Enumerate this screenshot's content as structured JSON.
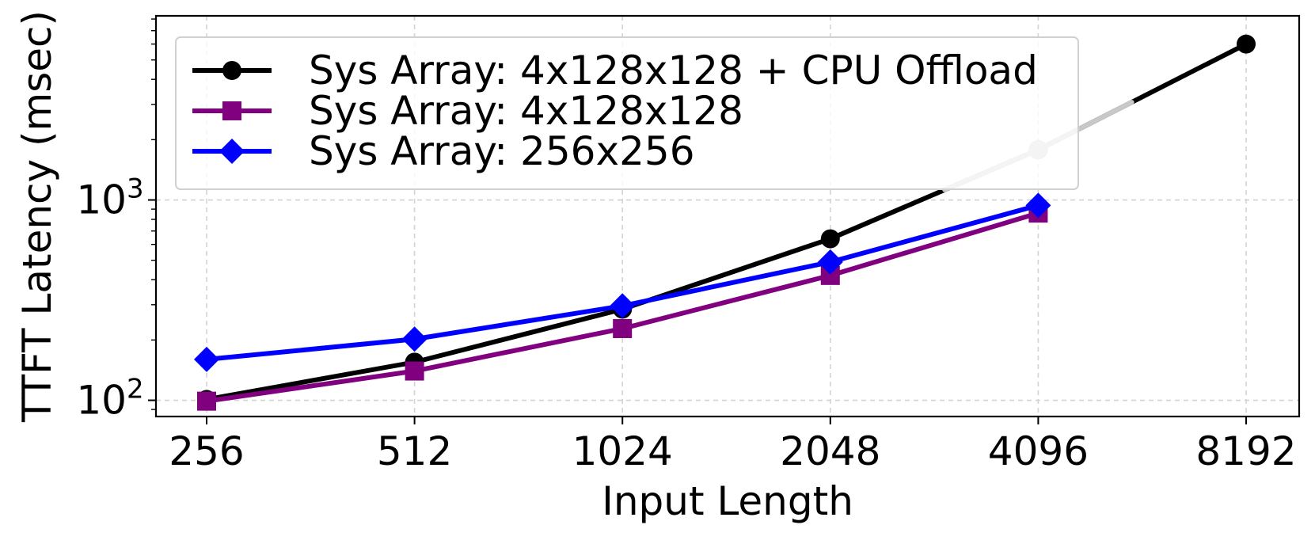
{
  "chart_data": {
    "type": "line",
    "xlabel": "Input Length",
    "ylabel": "TTFT Latency (msec)",
    "x_scale": "log2",
    "y_scale": "log10",
    "x": [
      256,
      512,
      1024,
      2048,
      4096,
      8192
    ],
    "x_tick_labels": [
      "256",
      "512",
      "1024",
      "2048",
      "4096",
      "8192"
    ],
    "y_ticks": [
      {
        "value": 100,
        "base": "10",
        "exp": "2"
      },
      {
        "value": 1000,
        "base": "10",
        "exp": "3"
      }
    ],
    "ylim": [
      83,
      8300
    ],
    "grid": true,
    "legend_position": "top-left",
    "series": [
      {
        "name": "Sys Array: 4x128x128 + CPU Offload",
        "color": "#000000",
        "marker": "circle",
        "values": [
          101,
          155,
          285,
          640,
          1780,
          6000
        ],
        "faded_points": [
          4
        ],
        "faded_color": "#c8c8c8"
      },
      {
        "name": "Sys Array: 4x128x128",
        "color": "#800080",
        "marker": "square",
        "values": [
          99,
          140,
          228,
          420,
          860,
          null
        ]
      },
      {
        "name": "Sys Array: 256x256",
        "color": "#0000ff",
        "marker": "diamond",
        "values": [
          160,
          202,
          296,
          490,
          940,
          null
        ]
      }
    ]
  }
}
